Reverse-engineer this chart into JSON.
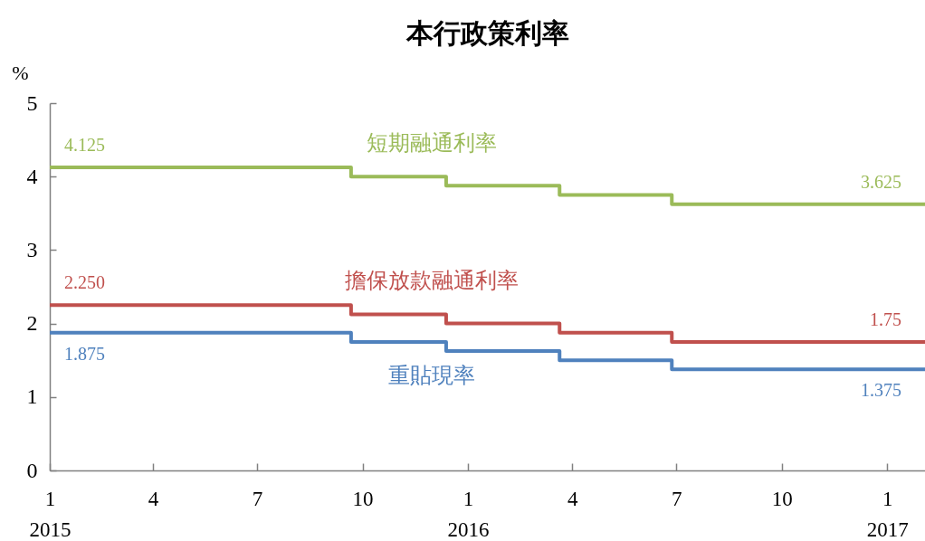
{
  "chart_data": {
    "type": "step",
    "title": "本行政策利率",
    "ylabel": "%",
    "x": [
      "2015-01-01",
      "2015-09-21",
      "2015-12-13",
      "2016-03-21",
      "2016-06-27",
      "2017-02-03"
    ],
    "xlim": [
      "2015-01-01",
      "2017-02-03"
    ],
    "xticks": [
      {
        "value": "2015-01-01",
        "label": "1\n2015"
      },
      {
        "value": "2015-04-01",
        "label": "4"
      },
      {
        "value": "2015-07-01",
        "label": "7"
      },
      {
        "value": "2015-10-01",
        "label": "10"
      },
      {
        "value": "2016-01-01",
        "label": "1\n2016"
      },
      {
        "value": "2016-04-01",
        "label": "4"
      },
      {
        "value": "2016-07-01",
        "label": "7"
      },
      {
        "value": "2016-10-01",
        "label": "10"
      },
      {
        "value": "2017-01-01",
        "label": "1\n2017"
      }
    ],
    "ylim": [
      0,
      5
    ],
    "yticks": [
      0,
      1,
      2,
      3,
      4,
      5
    ],
    "series": [
      {
        "name": "短期融通利率",
        "color": "#9bbb59",
        "values": [
          4.125,
          4.0,
          3.875,
          3.75,
          3.625,
          3.625
        ],
        "value_labels": [
          "4.125",
          null,
          null,
          null,
          null,
          "3.625"
        ]
      },
      {
        "name": "擔保放款融通利率",
        "color": "#c0504d",
        "values": [
          2.25,
          2.125,
          2.0,
          1.875,
          1.75,
          1.75
        ],
        "value_labels": [
          "2.250",
          null,
          null,
          null,
          null,
          "1.75"
        ]
      },
      {
        "name": "重貼現率",
        "color": "#4f81bd",
        "values": [
          1.875,
          1.75,
          1.625,
          1.5,
          1.375,
          1.375
        ],
        "value_labels": [
          "1.875",
          null,
          null,
          null,
          null,
          "1.375"
        ]
      }
    ],
    "legend": false
  }
}
